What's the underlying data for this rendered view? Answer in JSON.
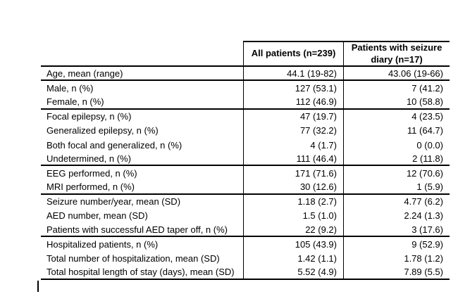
{
  "document": {
    "background_color": "#ffffff",
    "text_color": "#000000",
    "border_color": "#000000"
  },
  "table": {
    "header": {
      "col1": "",
      "col2": "All patients (n=239)",
      "col3": "Patients with seizure diary (n=17)"
    },
    "groups": [
      {
        "rows": [
          {
            "label": "Age, mean (range)",
            "all": "44.1 (19-82)",
            "diary": "43.06 (19-66)"
          }
        ]
      },
      {
        "rows": [
          {
            "label": "Male, n (%)",
            "all": "127 (53.1)",
            "diary": "7 (41.2)"
          },
          {
            "label": "Female, n (%)",
            "all": "112 (46.9)",
            "diary": "10 (58.8)"
          }
        ]
      },
      {
        "rows": [
          {
            "label": "Focal epilepsy, n (%)",
            "all": "47 (19.7)",
            "diary": "4 (23.5)"
          },
          {
            "label": "Generalized epilepsy, n (%)",
            "all": "77 (32.2)",
            "diary": "11 (64.7)"
          },
          {
            "label": "Both focal and generalized, n (%)",
            "all": "4 (1.7)",
            "diary": "0 (0.0)"
          },
          {
            "label": "Undetermined, n (%)",
            "all": "111 (46.4)",
            "diary": "2 (11.8)"
          }
        ]
      },
      {
        "rows": [
          {
            "label": "EEG performed, n (%)",
            "all": "171 (71.6)",
            "diary": "12 (70.6)"
          },
          {
            "label": "MRI performed, n (%)",
            "all": "30 (12.6)",
            "diary": "1 (5.9)"
          }
        ]
      },
      {
        "rows": [
          {
            "label": "Seizure number/year, mean (SD)",
            "all": "1.18 (2.7)",
            "diary": "4.77 (6.2)"
          },
          {
            "label": "AED number, mean (SD)",
            "all": "1.5 (1.0)",
            "diary": "2.24 (1.3)"
          },
          {
            "label": "Patients with successful AED taper off, n (%)",
            "all": "22 (9.2)",
            "diary": "3 (17.6)"
          }
        ]
      },
      {
        "rows": [
          {
            "label": "Hospitalized patients, n (%)",
            "all": "105 (43.9)",
            "diary": "9 (52.9)"
          },
          {
            "label": "Total number of hospitalization, mean (SD)",
            "all": "1.42 (1.1)",
            "diary": "1.78 (1.2)"
          },
          {
            "label": "Total hospital length of stay (days), mean (SD)",
            "all": "5.52 (4.9)",
            "diary": "7.89 (5.5)"
          }
        ]
      }
    ]
  }
}
